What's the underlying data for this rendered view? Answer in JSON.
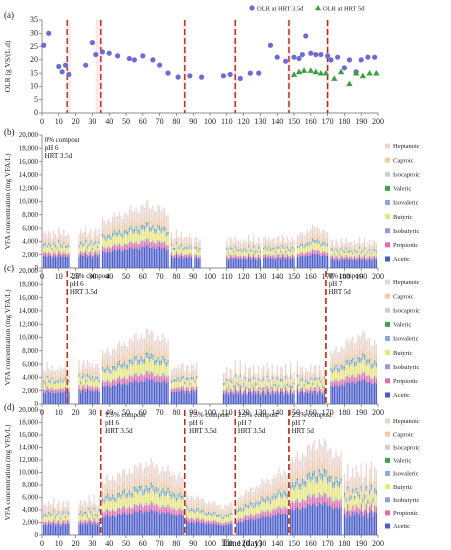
{
  "figure": {
    "xlabel": "Time (day)",
    "x_ticks": [
      0,
      10,
      20,
      30,
      40,
      50,
      60,
      70,
      80,
      90,
      100,
      110,
      120,
      130,
      140,
      150,
      160,
      170,
      180,
      190,
      200
    ],
    "vfa_series_names": [
      "Acetic",
      "Propionic",
      "Isobutyric",
      "Butyric",
      "Isovaleric",
      "Valeric",
      "Isocaproic",
      "Caproic",
      "Heptanoic"
    ],
    "vfa_series_colors": [
      "#4a5cc8",
      "#e06cad",
      "#9a9ad0",
      "#e6e680",
      "#8fa8df",
      "#43a047",
      "#cfcfcf",
      "#f3c9a4",
      "#e8d5cf"
    ]
  },
  "chart_data": [
    {
      "type": "scatter",
      "panel_label": "(a)",
      "ylabel": "OLR (g VS/(L.d)",
      "ylim": [
        0,
        35
      ],
      "yticks": [
        0,
        5,
        10,
        15,
        20,
        25,
        30,
        35
      ],
      "xlim": [
        0,
        200
      ],
      "legend": "top-right",
      "markers": [
        {
          "x": 35,
          "y": 25
        }
      ],
      "series": [
        {
          "name": "OLR at HRT 3.5d",
          "marker": "circle",
          "color": "#6b6bd1",
          "points": [
            [
              1,
              25.5
            ],
            [
              4,
              30
            ],
            [
              10,
              17.5
            ],
            [
              12,
              15.5
            ],
            [
              14,
              18
            ],
            [
              16,
              14.5
            ],
            [
              26,
              18
            ],
            [
              30,
              26.5
            ],
            [
              32,
              22
            ],
            [
              36,
              23
            ],
            [
              40,
              22.5
            ],
            [
              45,
              21.5
            ],
            [
              52,
              20.5
            ],
            [
              55,
              20
            ],
            [
              60,
              21.5
            ],
            [
              66,
              20
            ],
            [
              70,
              18
            ],
            [
              75,
              15
            ],
            [
              81,
              13.5
            ],
            [
              88,
              14
            ],
            [
              95,
              13.5
            ],
            [
              108,
              14
            ],
            [
              112,
              14.5
            ],
            [
              118,
              13
            ],
            [
              124,
              15
            ],
            [
              129,
              15
            ],
            [
              136,
              25.5
            ],
            [
              140,
              21
            ],
            [
              145,
              19.5
            ],
            [
              150,
              21
            ],
            [
              153,
              20.5
            ],
            [
              155,
              22
            ],
            [
              157,
              29
            ],
            [
              160,
              22.5
            ],
            [
              163,
              22
            ],
            [
              166,
              22
            ],
            [
              170,
              21.5
            ],
            [
              172,
              20
            ],
            [
              176,
              21
            ],
            [
              180,
              17
            ],
            [
              183,
              20
            ],
            [
              187,
              15.5
            ],
            [
              190,
              20
            ],
            [
              194,
              21
            ],
            [
              198,
              21
            ]
          ]
        },
        {
          "name": "OLR at HRT 5d",
          "marker": "triangle",
          "color": "#3f9f3f",
          "points": [
            [
              150,
              14.5
            ],
            [
              153,
              15.5
            ],
            [
              156,
              16
            ],
            [
              160,
              16
            ],
            [
              163,
              15.5
            ],
            [
              166,
              15
            ],
            [
              169,
              15
            ],
            [
              174,
              13
            ],
            [
              178,
              15.5
            ],
            [
              183,
              11
            ],
            [
              187,
              15
            ],
            [
              191,
              14
            ],
            [
              195,
              15
            ],
            [
              199,
              15
            ]
          ]
        }
      ],
      "phase_lines": [
        15,
        35,
        85,
        115,
        147,
        170
      ],
      "shaded_bands": [
        [
          15,
          17
        ],
        [
          32,
          36
        ],
        [
          84,
          86
        ],
        [
          114,
          116
        ],
        [
          146,
          148
        ],
        [
          169,
          171
        ]
      ]
    },
    {
      "type": "bar",
      "stacked": true,
      "panel_label": "(b)",
      "ylabel": "VFA concentration (mg VFA/L)",
      "ylim": [
        0,
        20000
      ],
      "yticks": [
        0,
        2000,
        4000,
        6000,
        8000,
        10000,
        12000,
        14000,
        16000,
        18000,
        20000
      ],
      "xlim": [
        0,
        200
      ],
      "legend": "right",
      "annotations": [
        {
          "x": 1,
          "lines": [
            "0% compost",
            "pH 6",
            "HRT 3.5d"
          ]
        }
      ],
      "phase_lines": [],
      "bar_groups": [
        {
          "x_start": 1,
          "x_end": 16,
          "profile": "flat",
          "total": 5200,
          "amp": 500
        },
        {
          "x_start": 22,
          "x_end": 34,
          "profile": "flat",
          "total": 5400,
          "amp": 600
        },
        {
          "x_start": 36,
          "x_end": 75,
          "profile": "hump",
          "total": 7000,
          "peak": 9500,
          "peak_at": 63
        },
        {
          "x_start": 77,
          "x_end": 89,
          "profile": "flat",
          "total": 4800,
          "amp": 500
        },
        {
          "x_start": 91,
          "x_end": 94,
          "profile": "flat",
          "total": 4300,
          "amp": 200
        },
        {
          "x_start": 110,
          "x_end": 130,
          "profile": "flat",
          "total": 4200,
          "amp": 500
        },
        {
          "x_start": 132,
          "x_end": 150,
          "profile": "flat",
          "total": 4400,
          "amp": 500
        },
        {
          "x_start": 152,
          "x_end": 170,
          "profile": "hump",
          "total": 4800,
          "peak": 6200,
          "peak_at": 163
        },
        {
          "x_start": 172,
          "x_end": 199,
          "profile": "flat",
          "total": 3900,
          "amp": 500
        }
      ]
    },
    {
      "type": "bar",
      "stacked": true,
      "panel_label": "(c)",
      "ylabel": "VFA concentration (mg VFA/L)",
      "ylim": [
        0,
        20000
      ],
      "yticks": [
        0,
        2000,
        4000,
        6000,
        8000,
        10000,
        12000,
        14000,
        16000,
        18000,
        20000
      ],
      "xlim": [
        0,
        200
      ],
      "legend": "right",
      "annotations": [
        {
          "x": 16,
          "lines": [
            "2.5% compost",
            "pH 6",
            "HRT 3.5d"
          ]
        },
        {
          "x": 170,
          "lines": [
            "0% compost",
            "pH 7",
            "HRT 5d"
          ]
        }
      ],
      "phase_lines": [
        15,
        169
      ],
      "bar_groups": [
        {
          "x_start": 1,
          "x_end": 16,
          "profile": "flat",
          "total": 5300,
          "amp": 500
        },
        {
          "x_start": 22,
          "x_end": 34,
          "profile": "flat",
          "total": 6000,
          "amp": 700
        },
        {
          "x_start": 36,
          "x_end": 75,
          "profile": "hump",
          "total": 7500,
          "peak": 10800,
          "peak_at": 63
        },
        {
          "x_start": 77,
          "x_end": 92,
          "profile": "flat",
          "total": 5600,
          "amp": 500
        },
        {
          "x_start": 108,
          "x_end": 150,
          "profile": "flat",
          "total": 5000,
          "amp": 1200
        },
        {
          "x_start": 152,
          "x_end": 168,
          "profile": "flat",
          "total": 5200,
          "amp": 900
        },
        {
          "x_start": 172,
          "x_end": 199,
          "profile": "hump",
          "total": 7500,
          "peak": 10500,
          "peak_at": 190
        }
      ]
    },
    {
      "type": "bar",
      "stacked": true,
      "panel_label": "(d)",
      "ylabel": "VFA concentration (mg VFA/L)",
      "ylim": [
        0,
        20000
      ],
      "yticks": [
        0,
        2000,
        4000,
        6000,
        8000,
        10000,
        12000,
        14000,
        16000,
        18000,
        20000
      ],
      "xlim": [
        0,
        200
      ],
      "legend": "right",
      "annotations": [
        {
          "x": 37,
          "lines": [
            "1.5% compost",
            "pH 6",
            "HRT 3.5d"
          ]
        },
        {
          "x": 87,
          "lines": [
            "1.5% compost",
            "pH 6",
            "HRT 3.5d"
          ]
        },
        {
          "x": 116,
          "lines": [
            "2.5% compost",
            "pH 7",
            "HRT 3.5d"
          ]
        },
        {
          "x": 148,
          "lines": [
            "2.5% compost",
            "pH 7",
            "HRT 5d"
          ]
        }
      ],
      "phase_lines": [
        35,
        85,
        115,
        147
      ],
      "bar_groups": [
        {
          "x_start": 1,
          "x_end": 16,
          "profile": "flat",
          "total": 5000,
          "amp": 600
        },
        {
          "x_start": 22,
          "x_end": 34,
          "profile": "flat",
          "total": 5400,
          "amp": 700
        },
        {
          "x_start": 36,
          "x_end": 84,
          "profile": "hump",
          "total": 8500,
          "peak": 11500,
          "peak_at": 63
        },
        {
          "x_start": 86,
          "x_end": 113,
          "profile": "dip",
          "total": 6500,
          "peak": 4500,
          "peak_at": 108
        },
        {
          "x_start": 116,
          "x_end": 146,
          "profile": "rise",
          "total": 6000,
          "peak": 10500,
          "peak_at": 146
        },
        {
          "x_start": 148,
          "x_end": 178,
          "profile": "hump",
          "total": 11500,
          "peak": 15000,
          "peak_at": 165
        },
        {
          "x_start": 180,
          "x_end": 199,
          "profile": "flat",
          "total": 10000,
          "amp": 1500
        }
      ]
    }
  ]
}
